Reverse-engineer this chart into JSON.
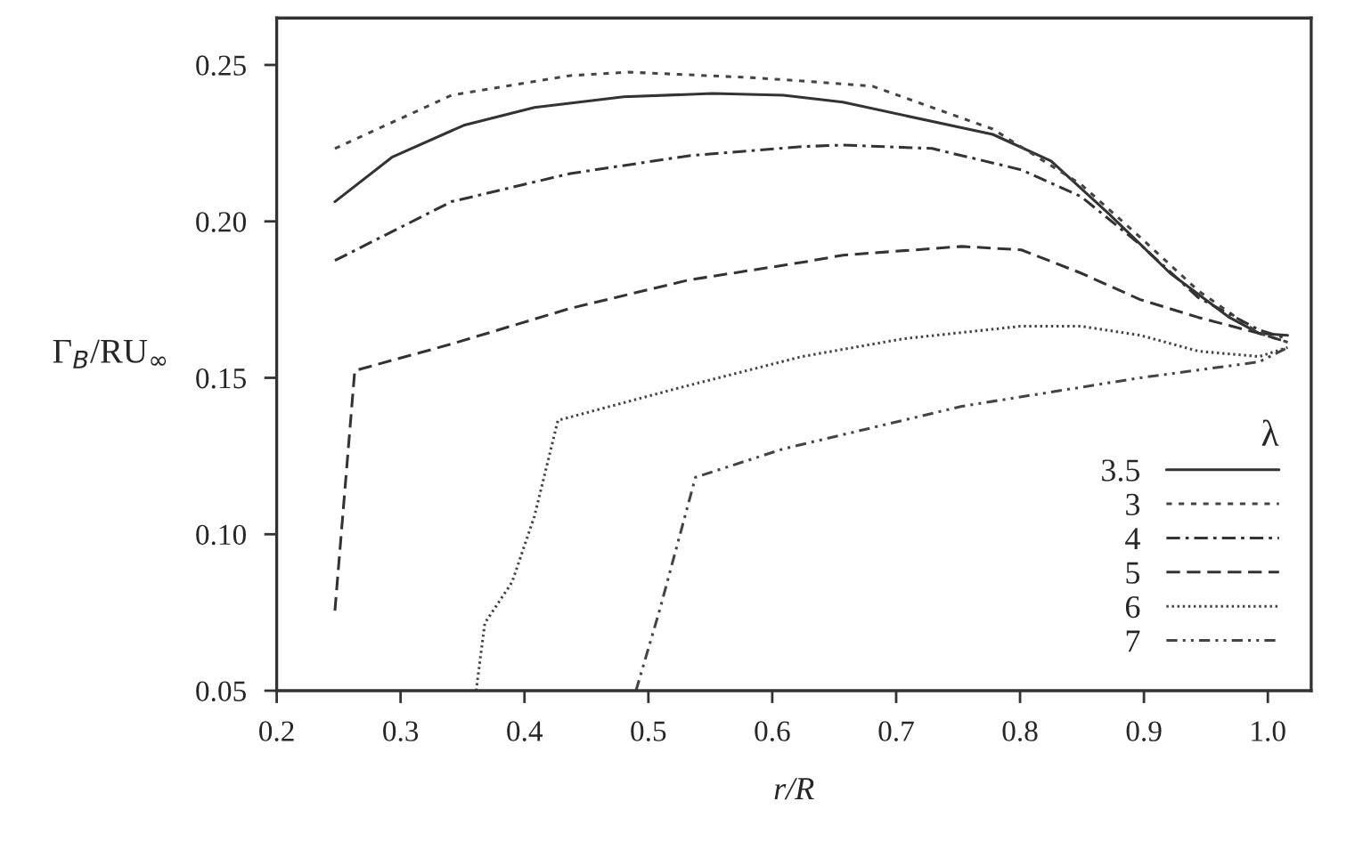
{
  "chart_data": {
    "type": "line",
    "xlabel": "r/R",
    "ylabel": "Γ$_{B}$/RU$_{∞}$",
    "legend_title": "λ",
    "legend": "bottom right",
    "grid": false,
    "xlim": [
      0.2,
      1.035
    ],
    "ylim": [
      0.05,
      0.265
    ],
    "xticks": [
      {
        "value": 0.2,
        "label": "0.2"
      },
      {
        "value": 0.3,
        "label": "0.3"
      },
      {
        "value": 0.4,
        "label": "0.4"
      },
      {
        "value": 0.5,
        "label": "0.5"
      },
      {
        "value": 0.6,
        "label": "0.6"
      },
      {
        "value": 0.7,
        "label": "0.7"
      },
      {
        "value": 0.8,
        "label": "0.8"
      },
      {
        "value": 0.9,
        "label": "0.9"
      },
      {
        "value": 1.0,
        "label": "1.0"
      }
    ],
    "yticks": [
      {
        "value": 0.05,
        "label": "0.05"
      },
      {
        "value": 0.1,
        "label": "0.10"
      },
      {
        "value": 0.15,
        "label": "0.15"
      },
      {
        "value": 0.2,
        "label": "0.20"
      },
      {
        "value": 0.25,
        "label": "0.25"
      }
    ],
    "series": [
      {
        "name": "3.5",
        "color": "#333333",
        "line_style": "solid",
        "x": [
          0.247,
          0.293,
          0.351,
          0.408,
          0.48,
          0.552,
          0.609,
          0.657,
          0.778,
          0.825,
          0.872,
          0.921,
          0.969,
          0.993,
          1.016
        ],
        "values": [
          0.2063,
          0.2205,
          0.2307,
          0.2364,
          0.2398,
          0.2409,
          0.2403,
          0.2381,
          0.2278,
          0.2193,
          0.2023,
          0.1835,
          0.1693,
          0.1642,
          0.1636
        ]
      },
      {
        "name": "3",
        "color": "#444444",
        "line_style": "short dashed",
        "x": [
          0.247,
          0.341,
          0.437,
          0.484,
          0.581,
          0.624,
          0.681,
          0.778,
          0.849,
          0.897,
          0.944,
          0.993,
          1.016
        ],
        "values": [
          0.2233,
          0.2403,
          0.2466,
          0.2477,
          0.246,
          0.2449,
          0.2432,
          0.2295,
          0.2119,
          0.1949,
          0.1778,
          0.1642,
          0.1614
        ]
      },
      {
        "name": "4",
        "color": "#333333",
        "line_style": "dashdot",
        "x": [
          0.247,
          0.341,
          0.437,
          0.533,
          0.624,
          0.657,
          0.729,
          0.801,
          0.849,
          0.897,
          0.944,
          0.993,
          1.016
        ],
        "values": [
          0.1875,
          0.2063,
          0.2153,
          0.221,
          0.2239,
          0.2244,
          0.2233,
          0.2165,
          0.208,
          0.1926,
          0.1756,
          0.1653,
          0.1625
        ]
      },
      {
        "name": "5",
        "color": "#333333",
        "line_style": "dashed",
        "x": [
          0.247,
          0.263,
          0.341,
          0.437,
          0.533,
          0.624,
          0.657,
          0.753,
          0.801,
          0.849,
          0.897,
          0.944,
          0.993,
          1.016
        ],
        "values": [
          0.0756,
          0.1523,
          0.1608,
          0.1722,
          0.1813,
          0.1869,
          0.1892,
          0.192,
          0.1909,
          0.1835,
          0.175,
          0.1693,
          0.1642,
          0.1614
        ]
      },
      {
        "name": "6",
        "color": "#444444",
        "line_style": "dotted",
        "x": [
          0.361,
          0.368,
          0.39,
          0.408,
          0.427,
          0.523,
          0.624,
          0.706,
          0.801,
          0.849,
          0.897,
          0.944,
          0.993,
          1.016
        ],
        "values": [
          0.05,
          0.0716,
          0.0847,
          0.1057,
          0.1364,
          0.1466,
          0.1568,
          0.1625,
          0.1665,
          0.1665,
          0.1636,
          0.1585,
          0.1568,
          0.1597
        ]
      },
      {
        "name": "7",
        "color": "#444444",
        "line_style": "dashdotdot",
        "x": [
          0.49,
          0.509,
          0.538,
          0.609,
          0.753,
          0.897,
          0.993,
          1.016
        ],
        "values": [
          0.05,
          0.0756,
          0.1182,
          0.1273,
          0.1409,
          0.15,
          0.1551,
          0.1597
        ]
      }
    ]
  }
}
